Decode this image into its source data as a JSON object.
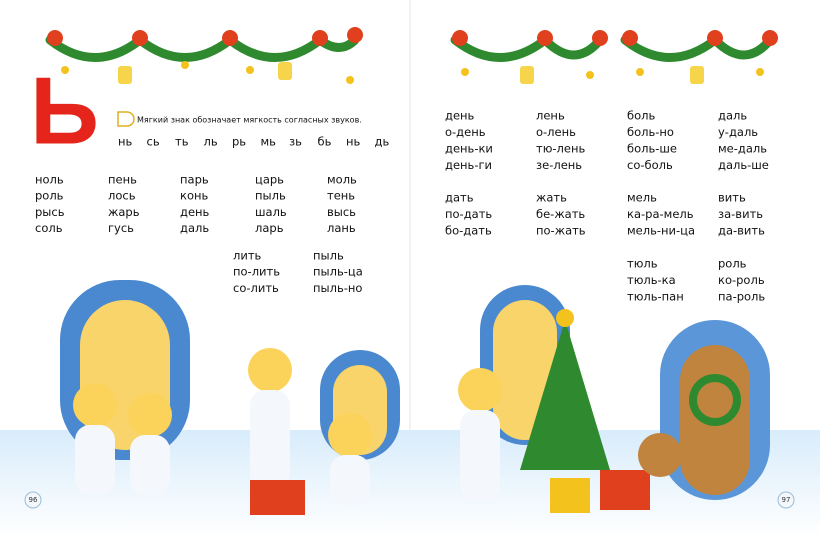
{
  "left": {
    "letter": "Ь",
    "note": "Мягкий знак обозначает мягкость согласных звуков.",
    "syllables": [
      "нь",
      "сь",
      "ть",
      "ль",
      "рь",
      "мь",
      "зь",
      "бь",
      "нь",
      "дь"
    ],
    "columns": [
      [
        "ноль",
        "роль",
        "рысь",
        "соль"
      ],
      [
        "пень",
        "лось",
        "жарь",
        "гусь"
      ],
      [
        "парь",
        "конь",
        "день",
        "даль"
      ],
      [
        "царь",
        "пыль",
        "шаль",
        "ларь"
      ],
      [
        "моль",
        "тень",
        "высь",
        "лань"
      ]
    ],
    "columns2": [
      [
        "лить",
        "по-лить",
        "со-лить"
      ],
      [
        "пыль",
        "пыль-ца",
        "пыль-но"
      ]
    ],
    "page_number": "96"
  },
  "right": {
    "blocks": [
      [
        [
          "день",
          "о-день",
          "день-ки",
          "день-ги"
        ],
        [
          "лень",
          "о-лень",
          "тю-лень",
          "зе-лень"
        ],
        [
          "боль",
          "боль-но",
          "боль-ше",
          "со-боль"
        ],
        [
          "даль",
          "у-даль",
          "ме-даль",
          "даль-ше"
        ]
      ],
      [
        [
          "дать",
          "по-дать",
          "бо-дать"
        ],
        [
          "жать",
          "бе-жать",
          "по-жать"
        ],
        [
          "мель",
          "ка-ра-мель",
          "мель-ни-ца"
        ],
        [
          "вить",
          "за-вить",
          "да-вить"
        ]
      ],
      [
        [
          "тюль",
          "тюль-ка",
          "тюль-пан"
        ],
        [
          "роль",
          "ко-роль",
          "па-роль"
        ]
      ]
    ],
    "page_number": "97"
  }
}
